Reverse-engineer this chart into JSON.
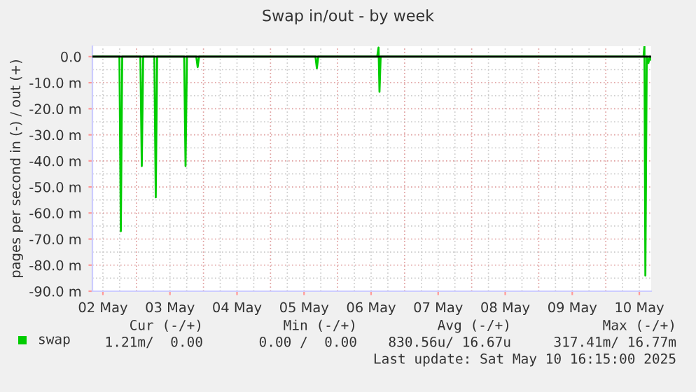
{
  "chart_data": {
    "type": "line",
    "title": "Swap in/out - by week",
    "ylabel": "pages per second in (-) / out (+)",
    "x": [
      "2025-05-02T08:15",
      "2025-05-02T17:55",
      "2025-05-02T18:25",
      "2025-05-02T18:55",
      "2025-05-03T01:25",
      "2025-05-03T01:55",
      "2025-05-03T02:25",
      "2025-05-03T06:25",
      "2025-05-03T06:55",
      "2025-05-03T07:25",
      "2025-05-03T17:05",
      "2025-05-03T17:35",
      "2025-05-03T18:05",
      "2025-05-03T21:25",
      "2025-05-03T21:55",
      "2025-05-03T22:25",
      "2025-05-05T16:05",
      "2025-05-05T16:35",
      "2025-05-05T17:05",
      "2025-05-06T14:10",
      "2025-05-06T14:40",
      "2025-05-06T15:00",
      "2025-05-06T15:25",
      "2025-05-10T13:30",
      "2025-05-10T13:50",
      "2025-05-10T14:10",
      "2025-05-10T14:40",
      "2025-05-10T15:15",
      "2025-05-10T15:45",
      "2025-05-10T16:15"
    ],
    "series": [
      {
        "name": "swap",
        "color": "#00cc00",
        "values": [
          0,
          0,
          -67,
          0,
          0,
          -42,
          0,
          0,
          -54,
          0,
          0,
          -42,
          0,
          0,
          -4,
          0,
          0,
          -4.5,
          0,
          0,
          3.5,
          -13.5,
          0,
          0,
          4,
          -84,
          0,
          -2.5,
          0,
          -1.2
        ]
      }
    ],
    "xlim": [
      "2025-05-02T08:15",
      "2025-05-10T16:15"
    ],
    "xticks": [
      {
        "value": "2025-05-02T12:00",
        "label": "02 May"
      },
      {
        "value": "2025-05-03T12:00",
        "label": "03 May"
      },
      {
        "value": "2025-05-04T12:00",
        "label": "04 May"
      },
      {
        "value": "2025-05-05T12:00",
        "label": "05 May"
      },
      {
        "value": "2025-05-06T12:00",
        "label": "06 May"
      },
      {
        "value": "2025-05-07T12:00",
        "label": "07 May"
      },
      {
        "value": "2025-05-08T12:00",
        "label": "08 May"
      },
      {
        "value": "2025-05-09T12:00",
        "label": "09 May"
      },
      {
        "value": "2025-05-10T12:00",
        "label": "10 May"
      }
    ],
    "ylim": [
      -90,
      4
    ],
    "yticks": [
      {
        "value": 0,
        "label": "0.0"
      },
      {
        "value": -10,
        "label": "-10.0 m"
      },
      {
        "value": -20,
        "label": "-20.0 m"
      },
      {
        "value": -30,
        "label": "-30.0 m"
      },
      {
        "value": -40,
        "label": "-40.0 m"
      },
      {
        "value": -50,
        "label": "-50.0 m"
      },
      {
        "value": -60,
        "label": "-60.0 m"
      },
      {
        "value": -70,
        "label": "-70.0 m"
      },
      {
        "value": -80,
        "label": "-80.0 m"
      },
      {
        "value": -90,
        "label": "-90.0 m"
      }
    ],
    "ref_lines": [
      {
        "axis": "y",
        "value": 0,
        "color": "#000000"
      }
    ],
    "grid": true,
    "legend": "bottom left",
    "annotations": [
      "Cur (-/+)",
      "Min (-/+)",
      "Avg (-/+)",
      "Max (-/+)",
      "1.21m/  0.00",
      "0.00 /  0.00",
      "830.56u/ 16.67u",
      "317.41m/ 16.77m",
      "Last update: Sat May 10 16:15:00 2025"
    ]
  }
}
